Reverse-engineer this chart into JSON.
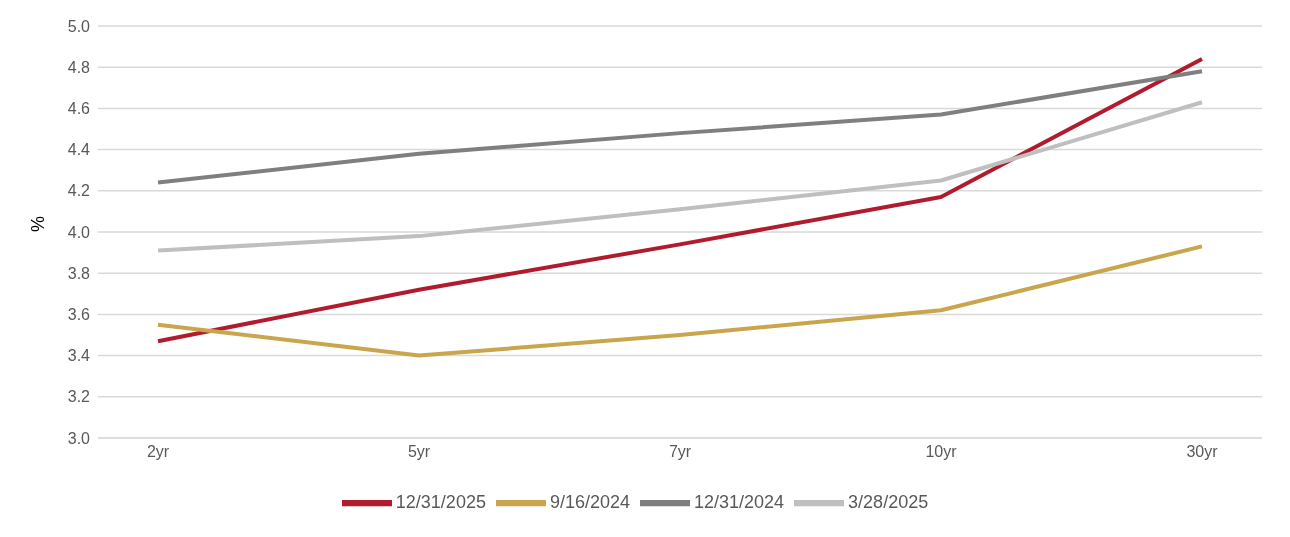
{
  "chart_data": {
    "type": "line",
    "ylabel": "%",
    "categories": [
      "2yr",
      "5yr",
      "7yr",
      "10yr",
      "30yr"
    ],
    "series": [
      {
        "name": "12/31/2025",
        "color": "#b01c2e",
        "values": [
          3.47,
          3.72,
          3.94,
          4.17,
          4.84
        ]
      },
      {
        "name": "9/16/2024",
        "color": "#c9a54e",
        "values": [
          3.55,
          3.4,
          3.5,
          3.62,
          3.93
        ]
      },
      {
        "name": "12/31/2024",
        "color": "#7f7f7f",
        "values": [
          4.24,
          4.38,
          4.48,
          4.57,
          4.78
        ]
      },
      {
        "name": "3/28/2025",
        "color": "#bfbfbf",
        "values": [
          3.91,
          3.98,
          4.11,
          4.25,
          4.63
        ]
      }
    ],
    "ylim": [
      3.0,
      5.0
    ],
    "yticks": [
      {
        "value": 3.0,
        "label": "3.0"
      },
      {
        "value": 3.2,
        "label": "3.2"
      },
      {
        "value": 3.4,
        "label": "3.4"
      },
      {
        "value": 3.6,
        "label": "3.6"
      },
      {
        "value": 3.8,
        "label": "3.8"
      },
      {
        "value": 4.0,
        "label": "4.0"
      },
      {
        "value": 4.2,
        "label": "4.2"
      },
      {
        "value": 4.4,
        "label": "4.4"
      },
      {
        "value": 4.6,
        "label": "4.6"
      },
      {
        "value": 4.8,
        "label": "4.8"
      },
      {
        "value": 5.0,
        "label": "5.0"
      }
    ],
    "grid": "y",
    "legend": "bottom",
    "marker": "none",
    "line_style": "solid"
  }
}
